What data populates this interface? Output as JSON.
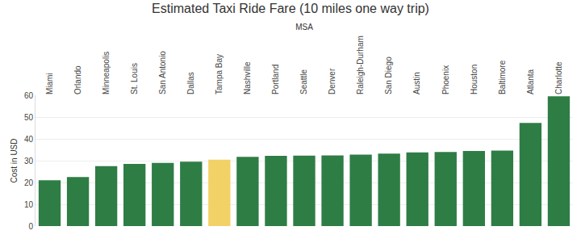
{
  "chart_data": {
    "type": "bar",
    "title": "Estimated Taxi Ride Fare (10 miles one way trip)",
    "x_label": "MSA",
    "y_label": "Cost in USD",
    "categories": [
      "Miami",
      "Orlando",
      "Minneapolis",
      "St. Louis",
      "San Antonio",
      "Dallas",
      "Tampa Bay",
      "Nashville",
      "Portland",
      "Seattle",
      "Denver",
      "Raleigh-Durham",
      "San Diego",
      "Austin",
      "Phoenix",
      "Houston",
      "Baltimore",
      "Atlanta",
      "Charlotte"
    ],
    "values": [
      21,
      22.5,
      27.5,
      28.5,
      29,
      29.5,
      30.5,
      31.8,
      32.2,
      32.3,
      32.4,
      32.8,
      33.2,
      33.8,
      34,
      34.4,
      34.6,
      47.3,
      59.5
    ],
    "colors": [
      "#2e7d45",
      "#2e7d45",
      "#2e7d45",
      "#2e7d45",
      "#2e7d45",
      "#2e7d45",
      "#f2d267",
      "#2e7d45",
      "#2e7d45",
      "#2e7d45",
      "#2e7d45",
      "#2e7d45",
      "#2e7d45",
      "#2e7d45",
      "#2e7d45",
      "#2e7d45",
      "#2e7d45",
      "#2e7d45",
      "#2e7d45"
    ],
    "ylim": [
      0,
      60
    ],
    "yticks": [
      0,
      10,
      20,
      30,
      40,
      50,
      60
    ],
    "grid": true
  }
}
